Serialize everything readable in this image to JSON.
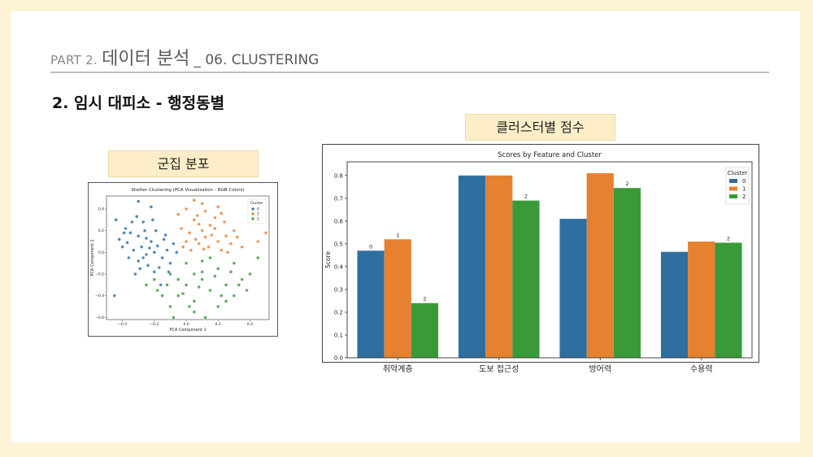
{
  "header": {
    "part": "PART 2.",
    "title_ko": "데이터 분석",
    "title_en": "_ 06. CLUSTERING"
  },
  "section_title": "2. 임시 대피소 - 행정동별",
  "left_label": "군집 분포",
  "right_label": "클러스터별 점수",
  "colors": {
    "c0": "#2f6f9f",
    "c1": "#e5812f",
    "c2": "#3a9a3a",
    "accent_bg": "#fdeec8",
    "page_bg": "#fdf3d6"
  },
  "chart_data": [
    {
      "type": "scatter",
      "title": "Shelter Clustering (PCA Visualization - RGB Colors)",
      "xlabel": "PCA Component 1",
      "ylabel": "PCA Component 2",
      "xlim": [
        -0.5,
        0.52
      ],
      "ylim": [
        -0.62,
        0.52
      ],
      "xticks": [
        -0.4,
        -0.2,
        0.0,
        0.2,
        0.4
      ],
      "yticks": [
        -0.6,
        -0.4,
        -0.2,
        0.0,
        0.2,
        0.4
      ],
      "xtick_labels": [
        "−0.4",
        "−0.2",
        "0.0",
        "0.2",
        "0.4"
      ],
      "ytick_labels": [
        "−0.6",
        "−0.4",
        "−0.2",
        "0.0",
        "0.2",
        "0.4"
      ],
      "legend": {
        "title": "Cluster",
        "labels": [
          "0",
          "1",
          "2"
        ],
        "placement": "top-right"
      },
      "series": [
        {
          "name": "0",
          "points": [
            [
              -0.35,
              0.18
            ],
            [
              -0.3,
              0.15
            ],
            [
              -0.28,
              0.05
            ],
            [
              -0.33,
              0.02
            ],
            [
              -0.25,
              -0.02
            ],
            [
              -0.3,
              -0.08
            ],
            [
              -0.22,
              0.1
            ],
            [
              -0.4,
              0.05
            ],
            [
              -0.38,
              0.22
            ],
            [
              -0.27,
              0.28
            ],
            [
              -0.2,
              0.0
            ],
            [
              -0.18,
              0.06
            ],
            [
              -0.15,
              -0.05
            ],
            [
              -0.24,
              -0.12
            ],
            [
              -0.36,
              -0.05
            ],
            [
              -0.42,
              0.12
            ],
            [
              -0.31,
              0.33
            ],
            [
              -0.26,
              0.2
            ],
            [
              -0.12,
              0.02
            ],
            [
              -0.1,
              -0.1
            ],
            [
              -0.2,
              -0.18
            ],
            [
              -0.16,
              -0.3
            ],
            [
              -0.45,
              -0.4
            ],
            [
              -0.34,
              0.28
            ],
            [
              -0.29,
              -0.15
            ],
            [
              -0.19,
              0.2
            ],
            [
              -0.14,
              0.12
            ],
            [
              -0.08,
              0.08
            ],
            [
              -0.37,
              0.09
            ],
            [
              -0.23,
              0.04
            ],
            [
              -0.32,
              -0.2
            ],
            [
              -0.27,
              -0.05
            ],
            [
              -0.17,
              -0.14
            ],
            [
              -0.21,
              0.3
            ],
            [
              -0.44,
              0.3
            ],
            [
              -0.39,
              0.18
            ],
            [
              -0.11,
              -0.18
            ],
            [
              -0.06,
              0.0
            ],
            [
              -0.3,
              0.47
            ],
            [
              -0.22,
              0.42
            ],
            [
              -0.25,
              0.13
            ],
            [
              -0.13,
              0.16
            ]
          ]
        },
        {
          "name": "1",
          "points": [
            [
              0.0,
              0.4
            ],
            [
              0.05,
              0.3
            ],
            [
              0.1,
              0.2
            ],
            [
              0.15,
              0.25
            ],
            [
              0.2,
              0.1
            ],
            [
              0.25,
              0.15
            ],
            [
              0.08,
              0.08
            ],
            [
              0.12,
              0.38
            ],
            [
              0.02,
              0.18
            ],
            [
              -0.03,
              0.22
            ],
            [
              0.18,
              0.32
            ],
            [
              0.22,
              0.02
            ],
            [
              0.28,
              0.08
            ],
            [
              0.3,
              0.2
            ],
            [
              0.06,
              0.12
            ],
            [
              0.14,
              0.05
            ],
            [
              0.1,
              0.45
            ],
            [
              -0.05,
              0.35
            ],
            [
              0.2,
              0.42
            ],
            [
              0.03,
              0.02
            ],
            [
              0.16,
              0.16
            ],
            [
              0.24,
              0.28
            ],
            [
              0.35,
              0.05
            ],
            [
              0.45,
              0.1
            ],
            [
              0.5,
              0.18
            ],
            [
              0.08,
              0.26
            ],
            [
              0.0,
              0.1
            ],
            [
              0.26,
              0.0
            ],
            [
              0.12,
              0.14
            ],
            [
              -0.02,
              0.05
            ],
            [
              0.18,
              0.22
            ],
            [
              0.32,
              0.14
            ],
            [
              0.07,
              0.34
            ],
            [
              0.22,
              0.36
            ],
            [
              0.05,
              0.48
            ],
            [
              0.11,
              0.03
            ]
          ]
        },
        {
          "name": "2",
          "points": [
            [
              -0.2,
              -0.25
            ],
            [
              -0.1,
              -0.2
            ],
            [
              0.0,
              -0.3
            ],
            [
              0.1,
              -0.25
            ],
            [
              0.2,
              -0.15
            ],
            [
              0.3,
              -0.1
            ],
            [
              -0.05,
              -0.4
            ],
            [
              0.05,
              -0.45
            ],
            [
              0.15,
              -0.35
            ],
            [
              0.25,
              -0.3
            ],
            [
              -0.15,
              -0.4
            ],
            [
              0.0,
              -0.1
            ],
            [
              0.1,
              -0.08
            ],
            [
              0.35,
              -0.25
            ],
            [
              0.4,
              -0.2
            ],
            [
              -0.25,
              -0.3
            ],
            [
              0.05,
              -0.55
            ],
            [
              0.2,
              -0.5
            ],
            [
              -0.1,
              -0.5
            ],
            [
              0.3,
              -0.4
            ],
            [
              0.15,
              -0.05
            ],
            [
              0.05,
              -0.2
            ],
            [
              -0.05,
              -0.25
            ],
            [
              0.25,
              -0.45
            ],
            [
              0.12,
              -0.6
            ],
            [
              0.45,
              -0.05
            ],
            [
              0.38,
              -0.35
            ],
            [
              -0.02,
              -0.38
            ],
            [
              0.08,
              -0.32
            ],
            [
              0.18,
              -0.22
            ],
            [
              -0.18,
              -0.35
            ],
            [
              0.28,
              -0.18
            ],
            [
              -0.08,
              -0.6
            ],
            [
              0.02,
              -0.5
            ],
            [
              0.33,
              -0.3
            ],
            [
              0.22,
              -0.4
            ],
            [
              0.1,
              -0.18
            ],
            [
              -0.12,
              -0.3
            ]
          ]
        }
      ]
    },
    {
      "type": "bar",
      "title": "Scores by Feature and Cluster",
      "xlabel": "",
      "ylabel": "Score",
      "ylim": [
        0,
        0.86
      ],
      "yticks": [
        0.0,
        0.1,
        0.2,
        0.3,
        0.4,
        0.5,
        0.6,
        0.7,
        0.8
      ],
      "ytick_labels": [
        "0.0",
        "0.1",
        "0.2",
        "0.3",
        "0.4",
        "0.5",
        "0.6",
        "0.7",
        "0.8"
      ],
      "categories": [
        "취약계층",
        "도보 접근성",
        "방어력",
        "수용력"
      ],
      "legend": {
        "title": "Cluster",
        "placement": "top-right"
      },
      "series": [
        {
          "name": "0",
          "values": [
            0.47,
            0.8,
            0.61,
            0.465
          ]
        },
        {
          "name": "1",
          "values": [
            0.52,
            0.8,
            0.81,
            0.51
          ]
        },
        {
          "name": "2",
          "values": [
            0.24,
            0.69,
            0.745,
            0.505
          ]
        }
      ],
      "bar_annotations": [
        {
          "category_index": 0,
          "series_index": 0,
          "text": "0"
        },
        {
          "category_index": 0,
          "series_index": 1,
          "text": "1"
        },
        {
          "category_index": 0,
          "series_index": 2,
          "text": "2"
        },
        {
          "category_index": 1,
          "series_index": 2,
          "text": "2"
        },
        {
          "category_index": 2,
          "series_index": 2,
          "text": "2"
        },
        {
          "category_index": 3,
          "series_index": 2,
          "text": "2"
        }
      ]
    }
  ]
}
